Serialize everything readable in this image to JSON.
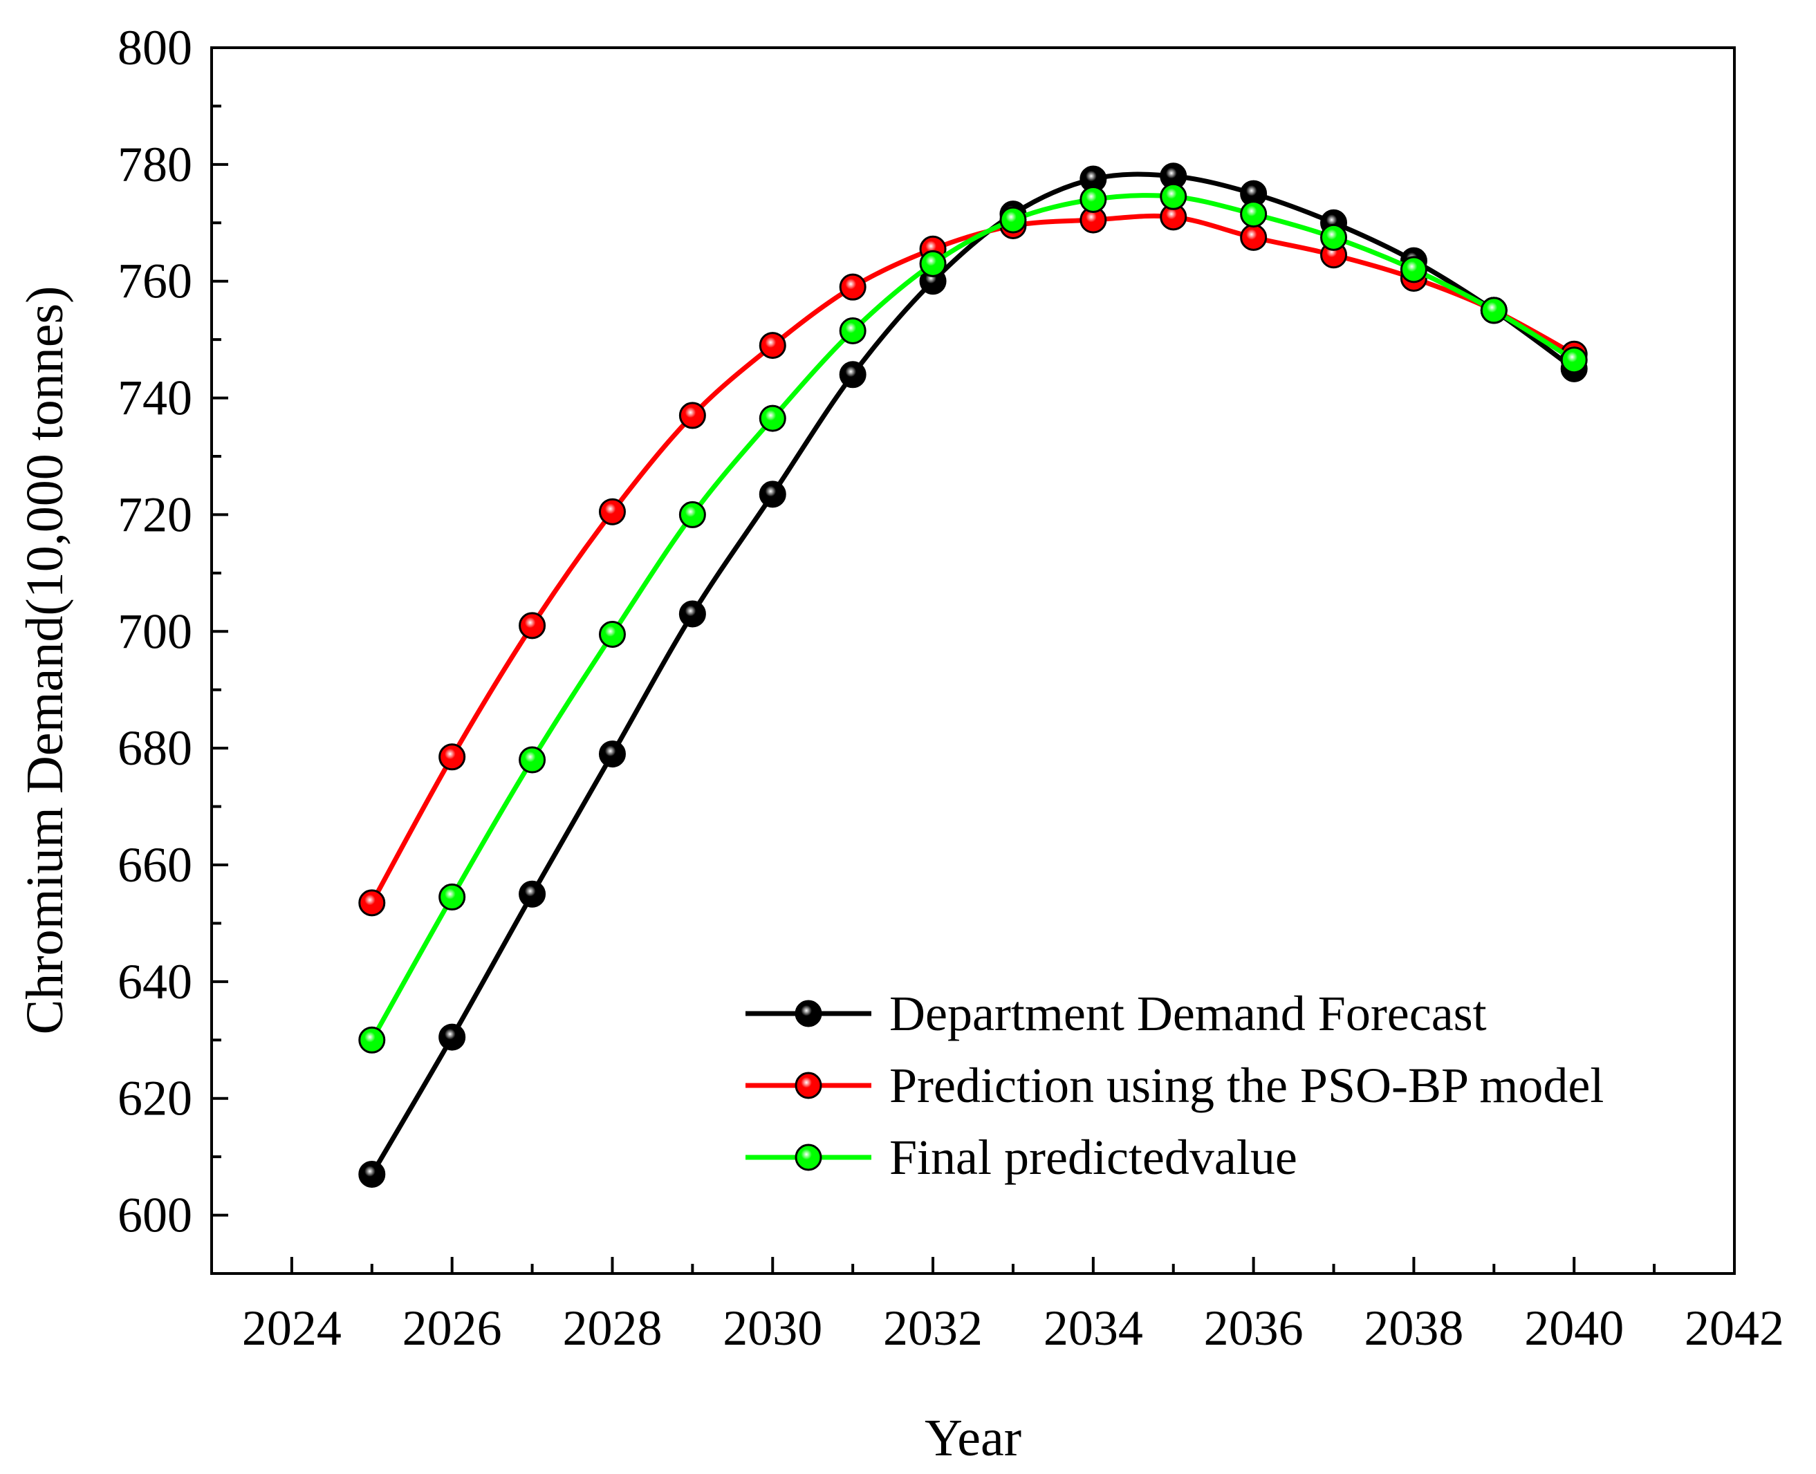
{
  "chart_data": {
    "type": "line",
    "xlabel": "Year",
    "ylabel": "Chromium Demand(10,000 tonnes)",
    "xlim": [
      2023,
      2042
    ],
    "ylim": [
      590,
      800
    ],
    "xticks": [
      2024,
      2026,
      2028,
      2030,
      2032,
      2034,
      2036,
      2038,
      2040,
      2042
    ],
    "yticks": [
      600,
      620,
      640,
      660,
      680,
      700,
      720,
      740,
      760,
      780,
      800
    ],
    "x": [
      2025,
      2026,
      2027,
      2028,
      2029,
      2030,
      2031,
      2032,
      2033,
      2034,
      2035,
      2036,
      2037,
      2038,
      2039,
      2040
    ],
    "series": [
      {
        "name": "Department Demand Forecast",
        "color": "#000000",
        "values": [
          607,
          630.5,
          655,
          679,
          703,
          723.5,
          744,
          760,
          771.5,
          777.5,
          778,
          775,
          770,
          763.5,
          755,
          745
        ]
      },
      {
        "name": "Prediction using the PSO-BP model",
        "color": "#ff0000",
        "values": [
          653.5,
          678.5,
          701,
          720.5,
          737,
          749,
          759,
          765.5,
          769.5,
          770.5,
          771,
          767.5,
          764.5,
          760.5,
          755,
          747.5
        ]
      },
      {
        "name": "Final predictedvalue",
        "color": "#00ff00",
        "values": [
          630,
          654.5,
          678,
          699.5,
          720,
          736.5,
          751.5,
          763,
          770.5,
          774,
          774.5,
          771.5,
          767.5,
          762,
          755,
          746.5
        ]
      }
    ],
    "legend_position": "bottom-right"
  }
}
